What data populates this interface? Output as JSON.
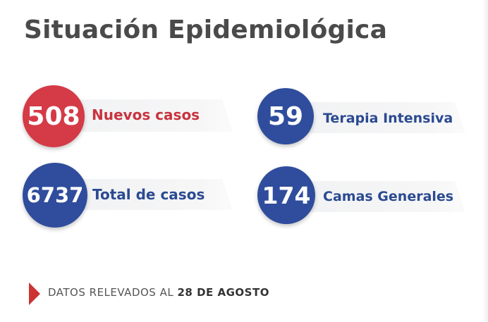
{
  "title": "Situación Epidemiológica",
  "stats": {
    "nuevos": {
      "value": "508",
      "label": "Nuevos casos"
    },
    "terapia": {
      "value": "59",
      "label": "Terapia Intensiva"
    },
    "total": {
      "value": "6737",
      "label": "Total de casos"
    },
    "camas": {
      "value": "174",
      "label": "Camas Generales"
    }
  },
  "footer": {
    "prefix": "DATOS RELEVADOS AL ",
    "date": "28 DE AGOSTO"
  },
  "colors": {
    "red": "#d53a47",
    "red_text": "#c8343f",
    "blue": "#2f4d9c",
    "blue_text": "#2b4a92",
    "title": "#4a4a4a",
    "footer_mark": "#cc3333"
  }
}
